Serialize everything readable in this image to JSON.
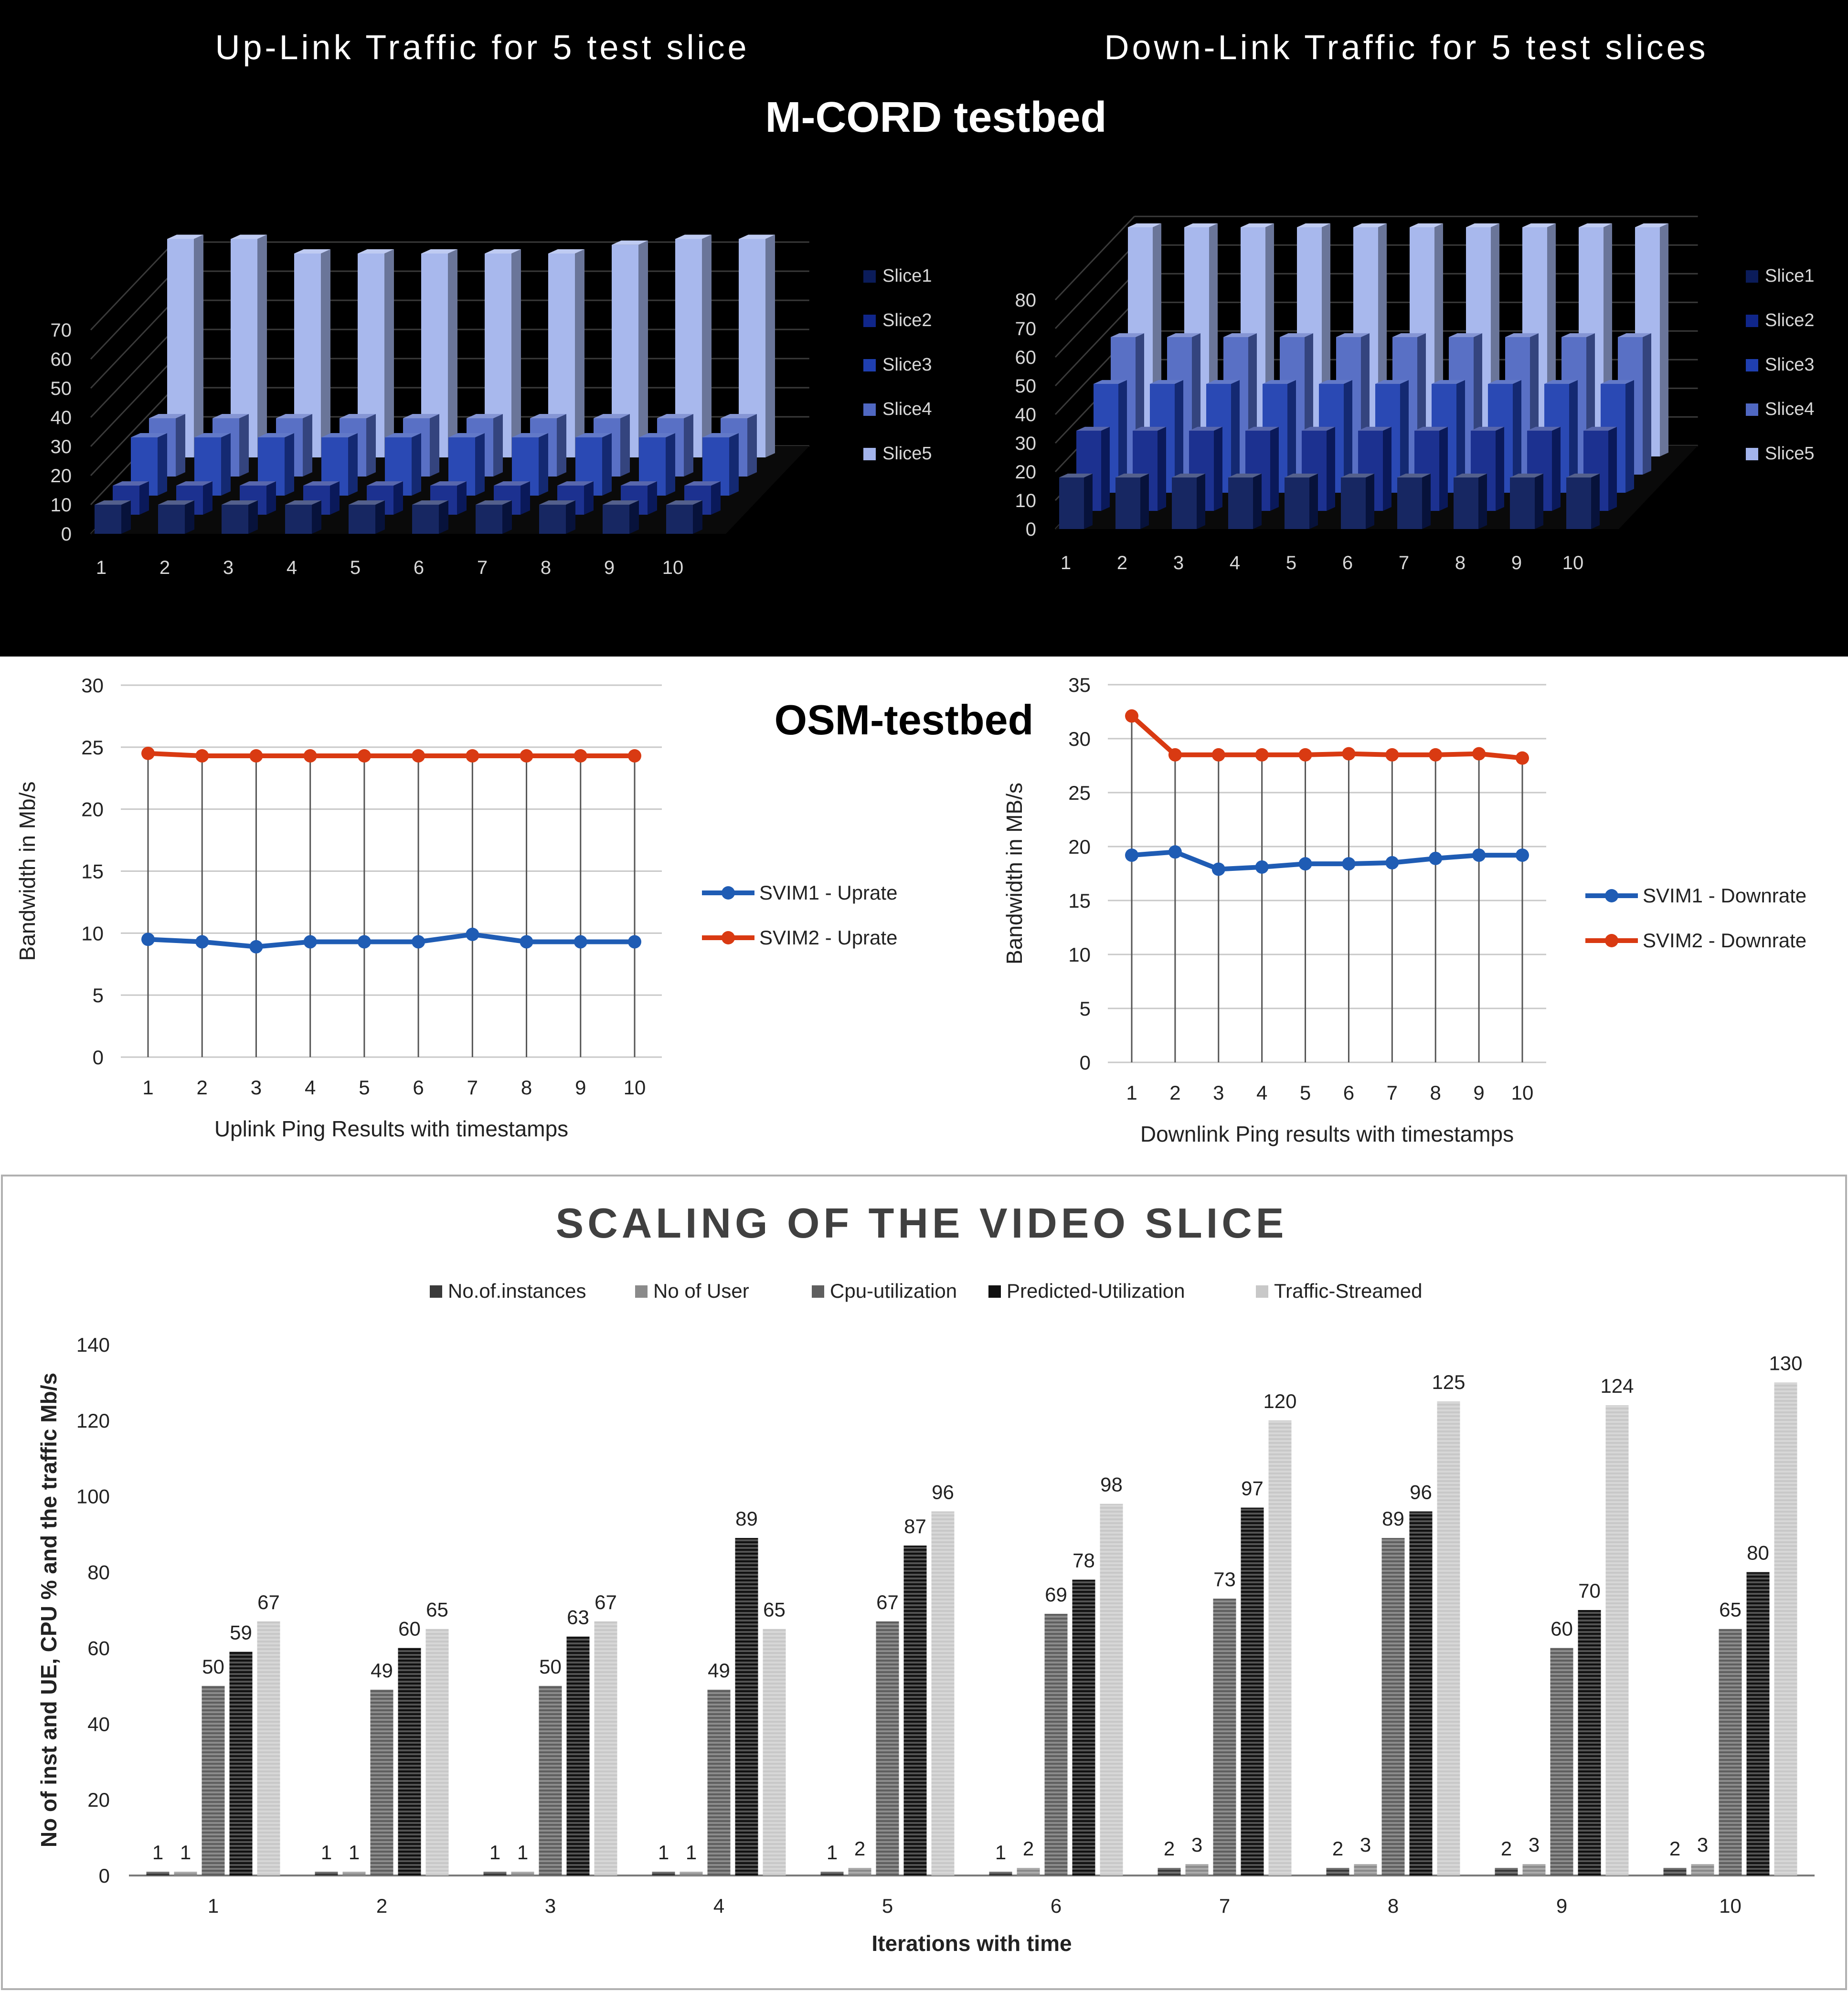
{
  "headings": {
    "mcord": "M-CORD testbed",
    "osm": "OSM-testbed"
  },
  "colors": {
    "dark_bg": "#000000",
    "svim1": "#1f5cb4",
    "svim2": "#d93a12",
    "slice1": "#0b1c5a",
    "slice2": "#10268a",
    "slice3": "#1f3fb0",
    "slice4": "#5068c2",
    "slice5": "#a3b4ec"
  },
  "chart_data": [
    {
      "type": "bar",
      "title": "Up-Link Traffic for 5 test slice",
      "categories": [
        "1",
        "2",
        "3",
        "4",
        "5",
        "6",
        "7",
        "8",
        "9",
        "10"
      ],
      "series": [
        {
          "name": "Slice1",
          "values": [
            10,
            10,
            10,
            10,
            10,
            10,
            10,
            10,
            10,
            10
          ]
        },
        {
          "name": "Slice2",
          "values": [
            10,
            10,
            10,
            10,
            10,
            10,
            10,
            10,
            10,
            10
          ]
        },
        {
          "name": "Slice3",
          "values": [
            20,
            20,
            20,
            20,
            20,
            20,
            20,
            20,
            20,
            20
          ]
        },
        {
          "name": "Slice4",
          "values": [
            20,
            20,
            20,
            20,
            20,
            20,
            20,
            20,
            20,
            20
          ]
        },
        {
          "name": "Slice5",
          "values": [
            75,
            75,
            70,
            70,
            70,
            70,
            70,
            73,
            75,
            75
          ]
        }
      ],
      "yticks": [
        "0",
        "10",
        "20",
        "30",
        "40",
        "50",
        "60",
        "70"
      ],
      "ylim": [
        0,
        70
      ],
      "legend_position": "right",
      "style": "3d-dark"
    },
    {
      "type": "bar",
      "title": "Down-Link Traffic for 5 test slices",
      "categories": [
        "1",
        "2",
        "3",
        "4",
        "5",
        "6",
        "7",
        "8",
        "9",
        "10"
      ],
      "series": [
        {
          "name": "Slice1",
          "values": [
            18,
            18,
            18,
            18,
            18,
            18,
            18,
            18,
            18,
            18
          ]
        },
        {
          "name": "Slice2",
          "values": [
            28,
            28,
            28,
            28,
            28,
            28,
            28,
            28,
            28,
            28
          ]
        },
        {
          "name": "Slice3",
          "values": [
            38,
            38,
            38,
            38,
            38,
            38,
            38,
            38,
            38,
            38
          ]
        },
        {
          "name": "Slice4",
          "values": [
            48,
            48,
            48,
            48,
            48,
            48,
            48,
            48,
            48,
            48
          ]
        },
        {
          "name": "Slice5",
          "values": [
            80,
            80,
            80,
            80,
            80,
            80,
            80,
            80,
            80,
            80
          ]
        }
      ],
      "yticks": [
        "0",
        "10",
        "20",
        "30",
        "40",
        "50",
        "60",
        "70",
        "80"
      ],
      "ylim": [
        0,
        80
      ],
      "legend_position": "right",
      "style": "3d-dark"
    },
    {
      "type": "line",
      "x": [
        "1",
        "2",
        "3",
        "4",
        "5",
        "6",
        "7",
        "8",
        "9",
        "10"
      ],
      "xlabel": "Uplink Ping Results with timestamps",
      "ylabel": "Bandwidth in Mb/s",
      "ylim": [
        0,
        30
      ],
      "yticks": [
        "0",
        "5",
        "10",
        "15",
        "20",
        "25",
        "30"
      ],
      "series": [
        {
          "name": "SVIM1 - Uprate",
          "values": [
            9.5,
            9.3,
            8.9,
            9.3,
            9.3,
            9.3,
            9.9,
            9.3,
            9.3,
            9.3
          ]
        },
        {
          "name": "SVIM2 - Uprate",
          "values": [
            24.5,
            24.3,
            24.3,
            24.3,
            24.3,
            24.3,
            24.3,
            24.3,
            24.3,
            24.3
          ]
        }
      ],
      "grid": true,
      "drop_lines": true,
      "legend_position": "right"
    },
    {
      "type": "line",
      "x": [
        "1",
        "2",
        "3",
        "4",
        "5",
        "6",
        "7",
        "8",
        "9",
        "10"
      ],
      "xlabel": "Downlink Ping results with timestamps",
      "ylabel": "Bandwidth in MB/s",
      "ylim": [
        0,
        35
      ],
      "yticks": [
        "0",
        "5",
        "10",
        "15",
        "20",
        "25",
        "30",
        "35"
      ],
      "series": [
        {
          "name": "SVIM1 - Downrate",
          "values": [
            19.2,
            19.5,
            17.9,
            18.1,
            18.4,
            18.4,
            18.5,
            18.9,
            19.2,
            19.2
          ]
        },
        {
          "name": "SVIM2 - Downrate",
          "values": [
            32.1,
            28.5,
            28.5,
            28.5,
            28.5,
            28.6,
            28.5,
            28.5,
            28.6,
            28.2
          ]
        }
      ],
      "grid": true,
      "drop_lines": true,
      "legend_position": "right"
    },
    {
      "type": "bar",
      "title": "SCALING OF THE VIDEO SLICE",
      "categories": [
        "1",
        "2",
        "3",
        "4",
        "5",
        "6",
        "7",
        "8",
        "9",
        "10"
      ],
      "xlabel": "Iterations with time",
      "ylabel": "No of inst and UE, CPU % and the traffic Mb/s",
      "ylim": [
        0,
        140
      ],
      "yticks": [
        "0",
        "20",
        "40",
        "60",
        "80",
        "100",
        "120",
        "140"
      ],
      "series": [
        {
          "name": "No.of.instances",
          "values": [
            1,
            1,
            1,
            1,
            1,
            1,
            2,
            2,
            2,
            2
          ],
          "color": "#3a3a3a"
        },
        {
          "name": "No of User",
          "values": [
            1,
            1,
            1,
            1,
            2,
            2,
            3,
            3,
            3,
            3
          ],
          "color": "#8a8a8a"
        },
        {
          "name": "Cpu-utilization",
          "values": [
            50,
            49,
            50,
            49,
            67,
            69,
            73,
            89,
            60,
            65
          ],
          "color": "#5f5f5f"
        },
        {
          "name": "Predicted-Utilization",
          "values": [
            59,
            60,
            63,
            89,
            87,
            78,
            97,
            96,
            70,
            80
          ],
          "color": "#111111"
        },
        {
          "name": "Traffic-Streamed",
          "values": [
            67,
            65,
            67,
            65,
            96,
            98,
            120,
            125,
            124,
            130
          ],
          "color": "#c8c8c8"
        }
      ],
      "data_labels": true,
      "legend_position": "top"
    }
  ]
}
